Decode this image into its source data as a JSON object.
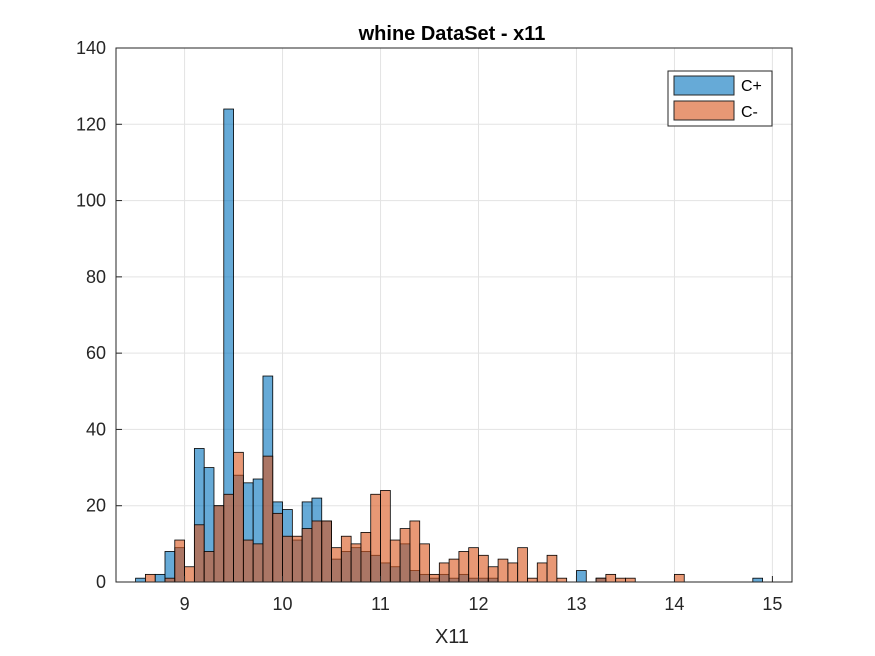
{
  "chart_data": {
    "type": "bar",
    "subtype": "overlaid-histogram",
    "title": "whine DataSet - x11",
    "xlabel": "X11",
    "ylabel": "",
    "xlim": [
      8.3,
      15.2
    ],
    "ylim": [
      0,
      140
    ],
    "xticks": [
      9,
      10,
      11,
      12,
      13,
      14,
      15
    ],
    "yticks": [
      0,
      20,
      40,
      60,
      80,
      100,
      120,
      140
    ],
    "grid": true,
    "legend_position": "top-right",
    "bin_width": 0.1,
    "colors": {
      "C+": "#0072BD",
      "C-": "#D95319"
    },
    "series": [
      {
        "name": "C+",
        "color": "#0072BD",
        "bins": [
          {
            "x": 8.55,
            "y": 1
          },
          {
            "x": 8.75,
            "y": 2
          },
          {
            "x": 8.85,
            "y": 8
          },
          {
            "x": 8.95,
            "y": 9
          },
          {
            "x": 9.15,
            "y": 35
          },
          {
            "x": 9.25,
            "y": 30
          },
          {
            "x": 9.35,
            "y": 20
          },
          {
            "x": 9.45,
            "y": 124
          },
          {
            "x": 9.55,
            "y": 28
          },
          {
            "x": 9.65,
            "y": 26
          },
          {
            "x": 9.75,
            "y": 27
          },
          {
            "x": 9.85,
            "y": 54
          },
          {
            "x": 9.95,
            "y": 21
          },
          {
            "x": 10.05,
            "y": 19
          },
          {
            "x": 10.15,
            "y": 11
          },
          {
            "x": 10.25,
            "y": 21
          },
          {
            "x": 10.35,
            "y": 22
          },
          {
            "x": 10.45,
            "y": 16
          },
          {
            "x": 10.55,
            "y": 6
          },
          {
            "x": 10.65,
            "y": 8
          },
          {
            "x": 10.75,
            "y": 9
          },
          {
            "x": 10.85,
            "y": 8
          },
          {
            "x": 10.95,
            "y": 7
          },
          {
            "x": 11.05,
            "y": 5
          },
          {
            "x": 11.15,
            "y": 4
          },
          {
            "x": 11.25,
            "y": 10
          },
          {
            "x": 11.35,
            "y": 3
          },
          {
            "x": 11.45,
            "y": 2
          },
          {
            "x": 11.55,
            "y": 1
          },
          {
            "x": 11.65,
            "y": 2
          },
          {
            "x": 11.75,
            "y": 1
          },
          {
            "x": 11.85,
            "y": 2
          },
          {
            "x": 11.95,
            "y": 1
          },
          {
            "x": 12.05,
            "y": 1
          },
          {
            "x": 12.15,
            "y": 1
          },
          {
            "x": 13.05,
            "y": 3
          },
          {
            "x": 13.25,
            "y": 1
          },
          {
            "x": 14.85,
            "y": 1
          }
        ]
      },
      {
        "name": "C-",
        "color": "#D95319",
        "bins": [
          {
            "x": 8.65,
            "y": 2
          },
          {
            "x": 8.85,
            "y": 1
          },
          {
            "x": 8.95,
            "y": 11
          },
          {
            "x": 9.05,
            "y": 4
          },
          {
            "x": 9.15,
            "y": 15
          },
          {
            "x": 9.25,
            "y": 8
          },
          {
            "x": 9.35,
            "y": 20
          },
          {
            "x": 9.45,
            "y": 23
          },
          {
            "x": 9.55,
            "y": 34
          },
          {
            "x": 9.65,
            "y": 11
          },
          {
            "x": 9.75,
            "y": 10
          },
          {
            "x": 9.85,
            "y": 33
          },
          {
            "x": 9.95,
            "y": 18
          },
          {
            "x": 10.05,
            "y": 12
          },
          {
            "x": 10.15,
            "y": 12
          },
          {
            "x": 10.25,
            "y": 14
          },
          {
            "x": 10.35,
            "y": 16
          },
          {
            "x": 10.45,
            "y": 16
          },
          {
            "x": 10.55,
            "y": 9
          },
          {
            "x": 10.65,
            "y": 12
          },
          {
            "x": 10.75,
            "y": 10
          },
          {
            "x": 10.85,
            "y": 13
          },
          {
            "x": 10.95,
            "y": 23
          },
          {
            "x": 11.05,
            "y": 24
          },
          {
            "x": 11.15,
            "y": 11
          },
          {
            "x": 11.25,
            "y": 14
          },
          {
            "x": 11.35,
            "y": 16
          },
          {
            "x": 11.45,
            "y": 10
          },
          {
            "x": 11.55,
            "y": 2
          },
          {
            "x": 11.65,
            "y": 5
          },
          {
            "x": 11.75,
            "y": 6
          },
          {
            "x": 11.85,
            "y": 8
          },
          {
            "x": 11.95,
            "y": 9
          },
          {
            "x": 12.05,
            "y": 7
          },
          {
            "x": 12.15,
            "y": 4
          },
          {
            "x": 12.25,
            "y": 6
          },
          {
            "x": 12.35,
            "y": 5
          },
          {
            "x": 12.45,
            "y": 9
          },
          {
            "x": 12.55,
            "y": 1
          },
          {
            "x": 12.65,
            "y": 5
          },
          {
            "x": 12.75,
            "y": 7
          },
          {
            "x": 12.85,
            "y": 1
          },
          {
            "x": 13.25,
            "y": 1
          },
          {
            "x": 13.35,
            "y": 2
          },
          {
            "x": 13.45,
            "y": 1
          },
          {
            "x": 13.55,
            "y": 1
          },
          {
            "x": 14.05,
            "y": 2
          }
        ]
      }
    ]
  }
}
